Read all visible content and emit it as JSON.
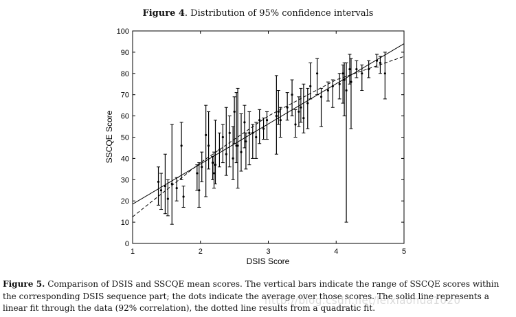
{
  "header": {
    "figure_label": "Figure 4",
    "figure_text": ". Distribution of 95% confidence intervals"
  },
  "chart_data": {
    "type": "scatter",
    "title": "",
    "xlabel": "DSIS Score",
    "ylabel": "SSCQE Score",
    "xlim": [
      1,
      5
    ],
    "ylim": [
      0,
      100
    ],
    "xticks": [
      1,
      2,
      3,
      4,
      5
    ],
    "yticks": [
      0,
      10,
      20,
      30,
      40,
      50,
      60,
      70,
      80,
      90,
      100
    ],
    "grid": false,
    "series": [
      {
        "points": [
          {
            "x": 1.38,
            "mean": 29,
            "low": 18,
            "high": 36
          },
          {
            "x": 1.42,
            "mean": 25,
            "low": 16,
            "high": 33
          },
          {
            "x": 1.48,
            "mean": 27,
            "low": 14,
            "high": 42
          },
          {
            "x": 1.52,
            "mean": 21,
            "low": 13,
            "high": 30
          },
          {
            "x": 1.58,
            "mean": 28,
            "low": 9,
            "high": 56
          },
          {
            "x": 1.65,
            "mean": 26,
            "low": 20,
            "high": 31
          },
          {
            "x": 1.72,
            "mean": 46,
            "low": 30,
            "high": 57
          },
          {
            "x": 1.75,
            "mean": 22,
            "low": 17,
            "high": 27
          },
          {
            "x": 1.95,
            "mean": 33,
            "low": 25,
            "high": 37
          },
          {
            "x": 1.98,
            "mean": 25,
            "low": 17,
            "high": 38
          },
          {
            "x": 2.02,
            "mean": 36,
            "low": 29,
            "high": 43
          },
          {
            "x": 2.08,
            "mean": 51,
            "low": 22,
            "high": 65
          },
          {
            "x": 2.12,
            "mean": 46,
            "low": 35,
            "high": 62
          },
          {
            "x": 2.18,
            "mean": 38,
            "low": 30,
            "high": 41
          },
          {
            "x": 2.2,
            "mean": 33,
            "low": 26,
            "high": 43
          },
          {
            "x": 2.22,
            "mean": 37,
            "low": 28,
            "high": 58
          },
          {
            "x": 2.28,
            "mean": 44,
            "low": 36,
            "high": 52
          },
          {
            "x": 2.33,
            "mean": 50,
            "low": 38,
            "high": 56
          },
          {
            "x": 2.38,
            "mean": 42,
            "low": 32,
            "high": 64
          },
          {
            "x": 2.43,
            "mean": 52,
            "low": 36,
            "high": 60
          },
          {
            "x": 2.48,
            "mean": 40,
            "low": 30,
            "high": 55
          },
          {
            "x": 2.5,
            "mean": 62,
            "low": 47,
            "high": 69
          },
          {
            "x": 2.53,
            "mean": 46,
            "low": 38,
            "high": 71
          },
          {
            "x": 2.55,
            "mean": 46,
            "low": 26,
            "high": 73
          },
          {
            "x": 2.6,
            "mean": 43,
            "low": 34,
            "high": 61
          },
          {
            "x": 2.65,
            "mean": 57,
            "low": 45,
            "high": 65
          },
          {
            "x": 2.67,
            "mean": 48,
            "low": 35,
            "high": 52
          },
          {
            "x": 2.72,
            "mean": 52,
            "low": 37,
            "high": 62
          },
          {
            "x": 2.77,
            "mean": 52,
            "low": 40,
            "high": 56
          },
          {
            "x": 2.82,
            "mean": 50,
            "low": 40,
            "high": 57
          },
          {
            "x": 2.87,
            "mean": 58,
            "low": 47,
            "high": 63
          },
          {
            "x": 2.93,
            "mean": 54,
            "low": 49,
            "high": 59
          },
          {
            "x": 2.98,
            "mean": 58,
            "low": 49,
            "high": 62
          },
          {
            "x": 3.12,
            "mean": 60,
            "low": 42,
            "high": 79
          },
          {
            "x": 3.15,
            "mean": 62,
            "low": 56,
            "high": 72
          },
          {
            "x": 3.18,
            "mean": 58,
            "low": 50,
            "high": 64
          },
          {
            "x": 3.28,
            "mean": 64,
            "low": 58,
            "high": 71
          },
          {
            "x": 3.35,
            "mean": 70,
            "low": 60,
            "high": 77
          },
          {
            "x": 3.4,
            "mean": 56,
            "low": 50,
            "high": 63
          },
          {
            "x": 3.45,
            "mean": 62,
            "low": 55,
            "high": 69
          },
          {
            "x": 3.48,
            "mean": 64,
            "low": 57,
            "high": 73
          },
          {
            "x": 3.52,
            "mean": 59,
            "low": 52,
            "high": 75
          },
          {
            "x": 3.58,
            "mean": 66,
            "low": 54,
            "high": 73
          },
          {
            "x": 3.62,
            "mean": 74,
            "low": 68,
            "high": 85
          },
          {
            "x": 3.72,
            "mean": 80,
            "low": 70,
            "high": 87
          },
          {
            "x": 3.78,
            "mean": 69,
            "low": 55,
            "high": 73
          },
          {
            "x": 3.88,
            "mean": 72,
            "low": 67,
            "high": 76
          },
          {
            "x": 3.95,
            "mean": 74,
            "low": 64,
            "high": 77
          },
          {
            "x": 4.05,
            "mean": 75,
            "low": 68,
            "high": 80
          },
          {
            "x": 4.1,
            "mean": 80,
            "low": 66,
            "high": 84
          },
          {
            "x": 4.12,
            "mean": 77,
            "low": 60,
            "high": 85
          },
          {
            "x": 4.15,
            "mean": 72,
            "low": 10,
            "high": 85
          },
          {
            "x": 4.2,
            "mean": 82,
            "low": 75,
            "high": 89
          },
          {
            "x": 4.22,
            "mean": 76,
            "low": 54,
            "high": 87
          },
          {
            "x": 4.3,
            "mean": 82,
            "low": 78,
            "high": 86
          },
          {
            "x": 4.38,
            "mean": 80,
            "low": 72,
            "high": 84
          },
          {
            "x": 4.48,
            "mean": 82,
            "low": 78,
            "high": 86
          },
          {
            "x": 4.6,
            "mean": 86,
            "low": 83,
            "high": 89
          },
          {
            "x": 4.65,
            "mean": 85,
            "low": 80,
            "high": 88
          },
          {
            "x": 4.72,
            "mean": 80,
            "low": 68,
            "high": 90
          }
        ]
      }
    ],
    "fits": [
      {
        "style": "solid",
        "x": [
          1,
          5
        ],
        "y": [
          18.5,
          94
        ]
      },
      {
        "style": "dashed",
        "x": [
          1,
          2,
          3,
          4,
          5
        ],
        "y": [
          12.5,
          38,
          60,
          77,
          88
        ]
      }
    ]
  },
  "footer": {
    "figure_label": "Figure 5.",
    "caption": " Comparison of DSIS and SSCQE mean scores. The vertical bars indicate the range of SSCQE scores within the corresponding DSIS sequence part; the dots indicate the average over those scores. The solid line represents a linear fit through the data (92% correlation), the dotted line results from a quadratic fit.",
    "watermark": "http://blog.csdn.net/leixiaohua1020"
  }
}
